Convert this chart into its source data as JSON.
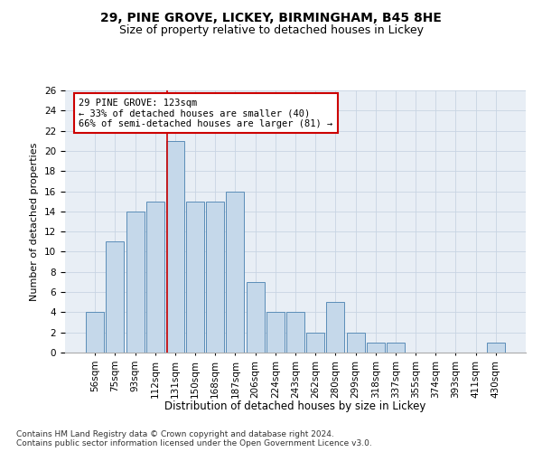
{
  "title1": "29, PINE GROVE, LICKEY, BIRMINGHAM, B45 8HE",
  "title2": "Size of property relative to detached houses in Lickey",
  "xlabel": "Distribution of detached houses by size in Lickey",
  "ylabel": "Number of detached properties",
  "categories": [
    "56sqm",
    "75sqm",
    "93sqm",
    "112sqm",
    "131sqm",
    "150sqm",
    "168sqm",
    "187sqm",
    "206sqm",
    "224sqm",
    "243sqm",
    "262sqm",
    "280sqm",
    "299sqm",
    "318sqm",
    "337sqm",
    "355sqm",
    "374sqm",
    "393sqm",
    "411sqm",
    "430sqm"
  ],
  "values": [
    4,
    11,
    14,
    15,
    21,
    15,
    15,
    16,
    7,
    4,
    4,
    2,
    5,
    2,
    1,
    1,
    0,
    0,
    0,
    0,
    1
  ],
  "bar_color": "#c5d8ea",
  "bar_edgecolor": "#5b8db8",
  "vline_color": "#cc0000",
  "annotation_text": "29 PINE GROVE: 123sqm\n← 33% of detached houses are smaller (40)\n66% of semi-detached houses are larger (81) →",
  "annotation_box_edgecolor": "#cc0000",
  "ylim": [
    0,
    26
  ],
  "yticks": [
    0,
    2,
    4,
    6,
    8,
    10,
    12,
    14,
    16,
    18,
    20,
    22,
    24,
    26
  ],
  "grid_color": "#c8d4e3",
  "bg_color": "#e8eef5",
  "footnote": "Contains HM Land Registry data © Crown copyright and database right 2024.\nContains public sector information licensed under the Open Government Licence v3.0.",
  "title1_fontsize": 10,
  "title2_fontsize": 9,
  "xlabel_fontsize": 8.5,
  "ylabel_fontsize": 8,
  "tick_fontsize": 7.5,
  "annot_fontsize": 7.5,
  "footnote_fontsize": 6.5
}
